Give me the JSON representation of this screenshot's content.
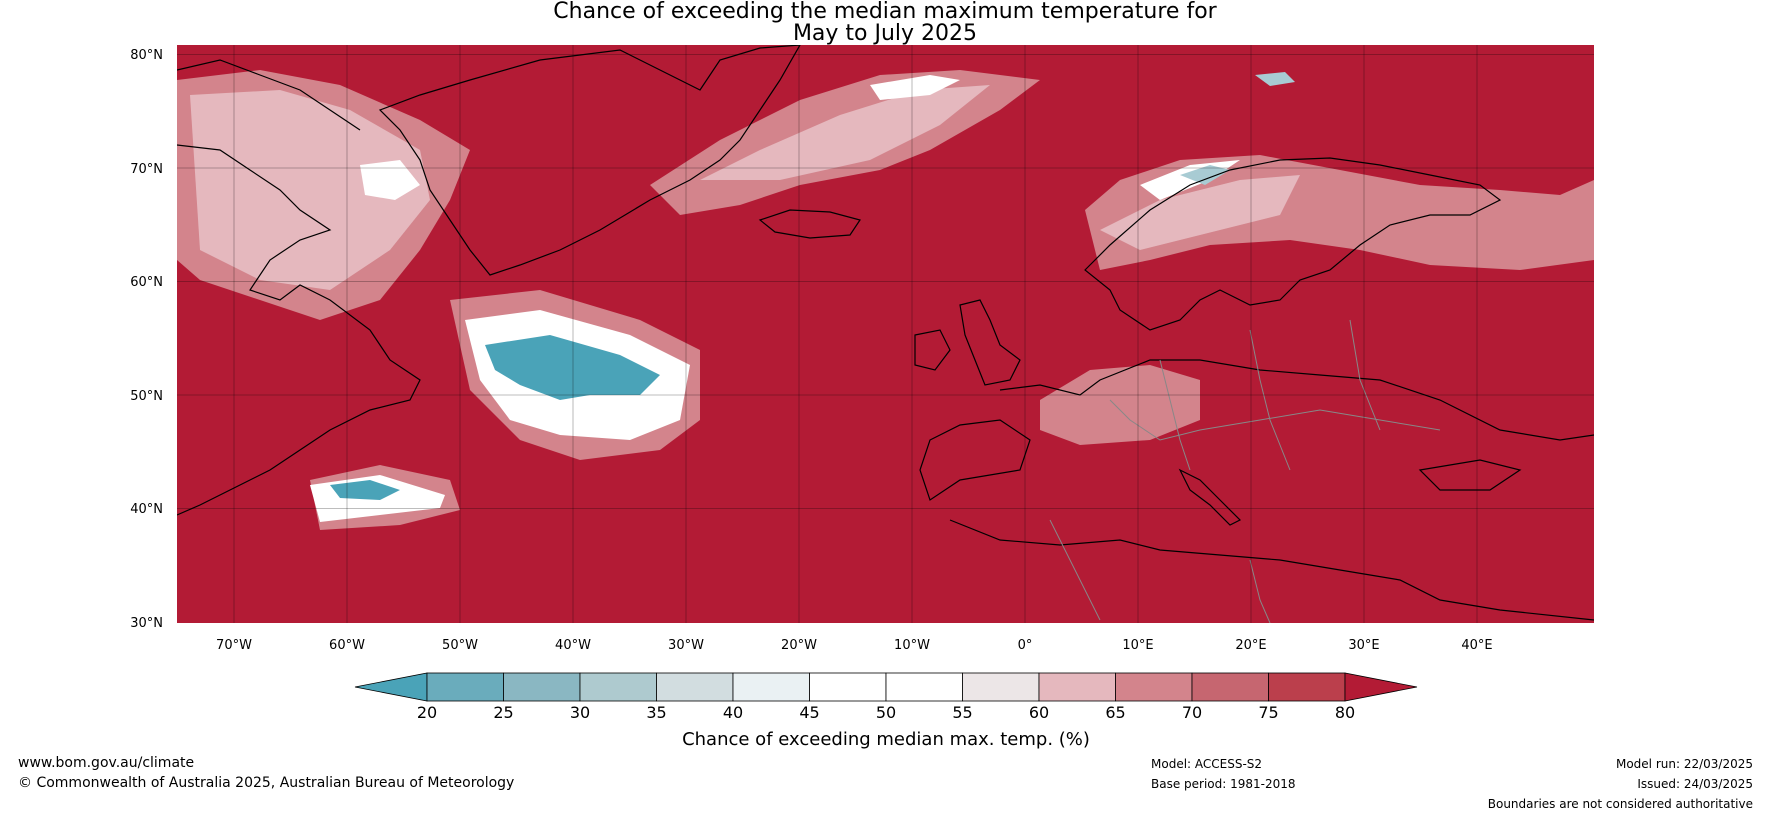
{
  "title": {
    "line1": "Chance of exceeding the median maximum temperature for",
    "line2": "May to July 2025"
  },
  "map": {
    "lat_labels": [
      "80°N",
      "70°N",
      "60°N",
      "50°N",
      "40°N",
      "30°N"
    ],
    "lon_labels": [
      "70°W",
      "60°W",
      "50°W",
      "40°W",
      "30°W",
      "20°W",
      "10°W",
      "0°",
      "10°E",
      "20°E",
      "30°E",
      "40°E"
    ],
    "colors": {
      "dominant": "#B31B35",
      "pink_light": "#E5B8BE",
      "pink_mid": "#D3848C",
      "white": "#FFFFFF",
      "teal": "#4AA3B8",
      "teal_light": "#A8CBD3"
    }
  },
  "colorbar": {
    "ticks": [
      "20",
      "25",
      "30",
      "35",
      "40",
      "45",
      "50",
      "55",
      "60",
      "65",
      "70",
      "75",
      "80"
    ],
    "colors": [
      "#4AA3B8",
      "#6AACBC",
      "#8AB7C2",
      "#AECACF",
      "#D2DDE0",
      "#EAF1F3",
      "#FFFFFF",
      "#FFFFFF",
      "#ECE6E7",
      "#E5B8BE",
      "#D3848C",
      "#C66670",
      "#BB3F4C",
      "#B31B35"
    ],
    "label": "Chance of exceeding median max. temp. (%)"
  },
  "footer": {
    "website": "www.bom.gov.au/climate",
    "copyright": "© Commonwealth of Australia 2025, Australian Bureau of Meteorology",
    "model": "Model: ACCESS-S2",
    "base_period": "Base period: 1981-2018",
    "model_run": "Model run: 22/03/2025",
    "issued": "Issued: 24/03/2025",
    "disclaimer": "Boundaries are not considered authoritative"
  }
}
